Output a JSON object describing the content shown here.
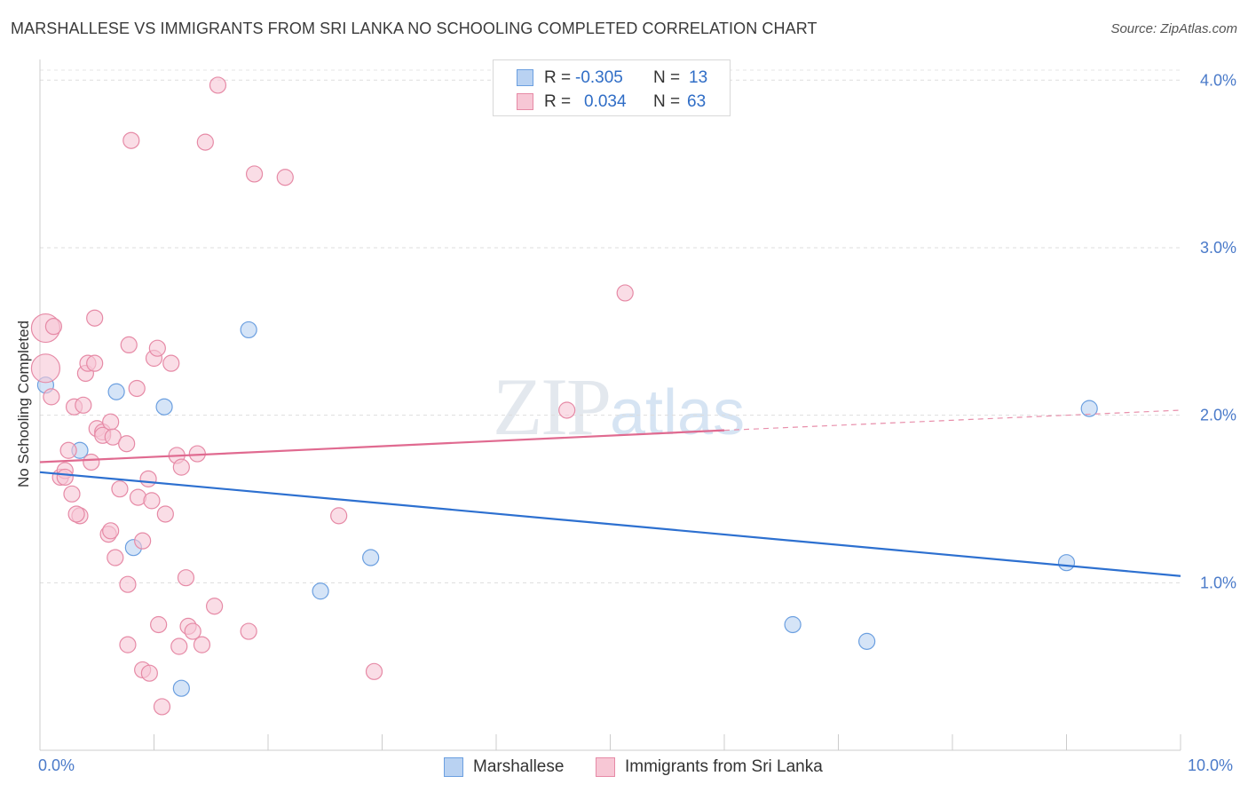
{
  "title": "MARSHALLESE VS IMMIGRANTS FROM SRI LANKA NO SCHOOLING COMPLETED CORRELATION CHART",
  "source": "Source: ZipAtlas.com",
  "watermark": {
    "zip": "ZIP",
    "atlas": "atlas"
  },
  "stats": {
    "r_label": "R =",
    "n_label": "N =",
    "rows": [
      {
        "r": "-0.305",
        "n": "13"
      },
      {
        "r": "0.034",
        "n": "63"
      }
    ]
  },
  "chart_data": {
    "type": "scatter",
    "title": "MARSHALLESE VS IMMIGRANTS FROM SRI LANKA NO SCHOOLING COMPLETED CORRELATION CHART",
    "xlabel": "",
    "ylabel": "No Schooling Completed",
    "xlim": [
      0,
      10
    ],
    "ylim": [
      0,
      4.15
    ],
    "x_tick_labels": [
      "0.0%",
      "10.0%"
    ],
    "y_ticks": [
      1,
      2,
      3,
      4
    ],
    "y_tick_labels": [
      "1.0%",
      "2.0%",
      "3.0%",
      "4.0%"
    ],
    "grid": true,
    "legend_position": "bottom-center",
    "series": [
      {
        "name": "Marshallese",
        "color": "#6b9fe0",
        "fill": "#b9d2f2",
        "points": [
          [
            0.05,
            2.18
          ],
          [
            0.35,
            1.79
          ],
          [
            0.67,
            2.14
          ],
          [
            0.82,
            1.21
          ],
          [
            1.09,
            2.05
          ],
          [
            1.24,
            0.37
          ],
          [
            1.83,
            2.51
          ],
          [
            2.9,
            1.15
          ],
          [
            2.46,
            0.95
          ],
          [
            6.6,
            0.75
          ],
          [
            7.25,
            0.65
          ],
          [
            9.0,
            1.12
          ],
          [
            9.2,
            2.04
          ]
        ],
        "trend": {
          "x": [
            0,
            10
          ],
          "y": [
            1.66,
            1.04
          ]
        }
      },
      {
        "name": "Immigrants from Sri Lanka",
        "color": "#e68aa6",
        "fill": "#f7c7d5",
        "points": [
          [
            0.05,
            2.52
          ],
          [
            0.05,
            2.28
          ],
          [
            0.1,
            2.11
          ],
          [
            0.12,
            2.53
          ],
          [
            0.18,
            1.63
          ],
          [
            0.22,
            1.67
          ],
          [
            0.25,
            1.79
          ],
          [
            0.22,
            1.63
          ],
          [
            0.28,
            1.53
          ],
          [
            0.3,
            2.05
          ],
          [
            0.38,
            2.06
          ],
          [
            0.35,
            1.4
          ],
          [
            0.32,
            1.41
          ],
          [
            0.4,
            2.25
          ],
          [
            0.42,
            2.31
          ],
          [
            0.45,
            1.72
          ],
          [
            0.48,
            2.31
          ],
          [
            0.5,
            1.92
          ],
          [
            0.55,
            1.9
          ],
          [
            0.48,
            2.58
          ],
          [
            0.55,
            1.88
          ],
          [
            0.6,
            1.29
          ],
          [
            0.62,
            1.31
          ],
          [
            0.62,
            1.96
          ],
          [
            0.64,
            1.87
          ],
          [
            0.66,
            1.15
          ],
          [
            0.7,
            1.56
          ],
          [
            0.76,
            1.83
          ],
          [
            0.77,
            0.63
          ],
          [
            0.77,
            0.99
          ],
          [
            0.78,
            2.42
          ],
          [
            0.8,
            3.64
          ],
          [
            0.85,
            2.16
          ],
          [
            0.86,
            1.51
          ],
          [
            0.9,
            1.25
          ],
          [
            0.9,
            0.48
          ],
          [
            0.95,
            1.62
          ],
          [
            0.96,
            0.46
          ],
          [
            0.98,
            1.49
          ],
          [
            1.0,
            2.34
          ],
          [
            1.03,
            2.4
          ],
          [
            1.04,
            0.75
          ],
          [
            1.07,
            0.26
          ],
          [
            1.1,
            1.41
          ],
          [
            1.15,
            2.31
          ],
          [
            1.2,
            1.76
          ],
          [
            1.22,
            0.62
          ],
          [
            1.24,
            1.69
          ],
          [
            1.28,
            1.03
          ],
          [
            1.3,
            0.74
          ],
          [
            1.34,
            0.71
          ],
          [
            1.38,
            1.77
          ],
          [
            1.42,
            0.63
          ],
          [
            1.45,
            3.63
          ],
          [
            1.53,
            0.86
          ],
          [
            1.56,
            3.97
          ],
          [
            1.83,
            0.71
          ],
          [
            1.88,
            3.44
          ],
          [
            2.15,
            3.42
          ],
          [
            2.62,
            1.4
          ],
          [
            2.93,
            0.47
          ],
          [
            4.62,
            2.03
          ],
          [
            5.13,
            2.73
          ]
        ],
        "trend": {
          "x": [
            0,
            6.0
          ],
          "y": [
            1.72,
            1.91
          ]
        },
        "trend_dashed": {
          "x": [
            6.0,
            10
          ],
          "y": [
            1.91,
            2.03
          ]
        }
      }
    ]
  }
}
